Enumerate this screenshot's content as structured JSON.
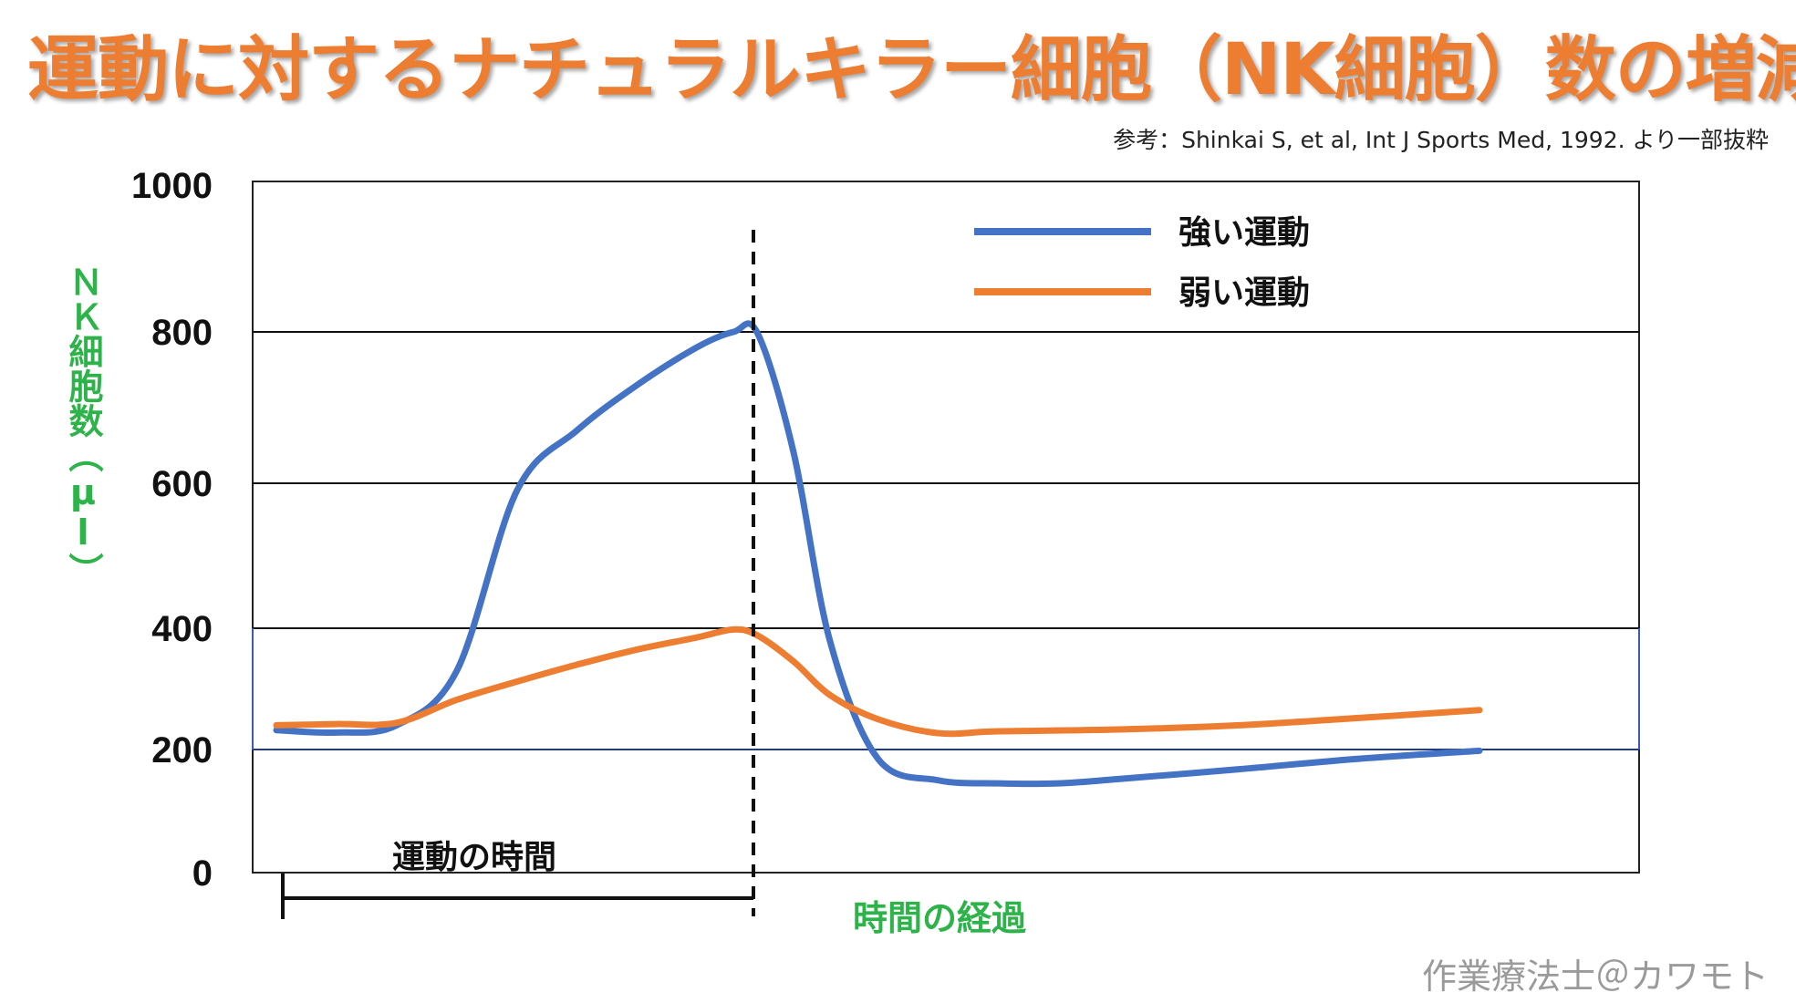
{
  "title": "運動に対するナチュラルキラー細胞（NK細胞）数の増減",
  "source": "参考：Shinkai S, et al, Int J Sports Med, 1992. より一部抜粋",
  "credit": "作業療法士＠カワモト",
  "colors": {
    "title": "#ED7D31",
    "strong": "#4472C4",
    "weak": "#ED7D31",
    "axis_label": "#2DB34A"
  },
  "chart_data": {
    "type": "line",
    "ylabel": "ＮＫ細胞数（μl）",
    "xlabel": "時間の経過",
    "ylim": [
      0,
      1000
    ],
    "yticks": [
      "1000",
      "800",
      "600",
      "400",
      "200",
      "0"
    ],
    "grid": true,
    "legend_position": "top-right",
    "x_description": "time (unitless progression)",
    "series": [
      {
        "name": "強い運動",
        "color": "#4472C4",
        "x": [
          0,
          0.05,
          0.1,
          0.15,
          0.2,
          0.25,
          0.3,
          0.35,
          0.38,
          0.4,
          0.43,
          0.46,
          0.5,
          0.55,
          0.6,
          0.65,
          0.7,
          0.8,
          0.9,
          1.0
        ],
        "y": [
          232,
          228,
          240,
          330,
          590,
          670,
          730,
          780,
          800,
          798,
          640,
          380,
          185,
          150,
          145,
          145,
          152,
          168,
          185,
          198
        ]
      },
      {
        "name": "弱い運動",
        "color": "#ED7D31",
        "x": [
          0,
          0.05,
          0.1,
          0.15,
          0.2,
          0.25,
          0.3,
          0.35,
          0.38,
          0.4,
          0.43,
          0.46,
          0.5,
          0.55,
          0.6,
          0.7,
          0.8,
          0.9,
          1.0
        ],
        "y": [
          240,
          242,
          244,
          282,
          312,
          340,
          365,
          385,
          398,
          388,
          345,
          290,
          250,
          227,
          230,
          233,
          240,
          252,
          265
        ]
      }
    ],
    "annotations": {
      "exercise_period_label": "運動の時間",
      "exercise_period_x": [
        0,
        0.4
      ]
    }
  }
}
